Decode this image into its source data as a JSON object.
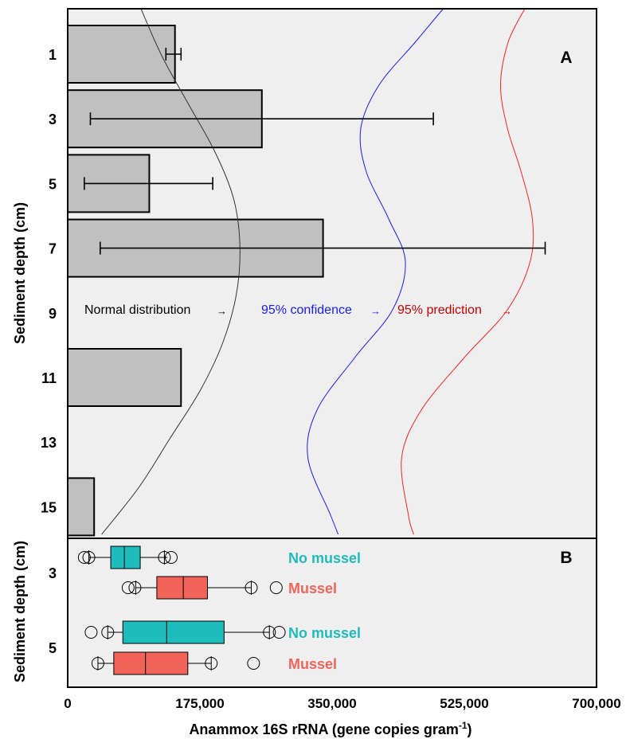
{
  "chart_data": [
    {
      "type": "bar",
      "orientation": "horizontal",
      "panel_label": "A",
      "ylabel": "Sediment depth (cm)",
      "categories": [
        "1",
        "3",
        "5",
        "7",
        "9",
        "11",
        "13",
        "15"
      ],
      "values": [
        142000,
        257000,
        108000,
        338000,
        0,
        150000,
        0,
        35000
      ],
      "error_low": [
        130000,
        30000,
        22000,
        43000,
        null,
        null,
        null,
        null
      ],
      "error_high": [
        150000,
        484000,
        192000,
        632000,
        null,
        null,
        null,
        null
      ],
      "bar_color": "#c0c0c0",
      "background_color": "#efefef",
      "curves": [
        {
          "label": "Normal distribution",
          "color": "#333333",
          "x": [
            97000,
            125000,
            160000,
            195000,
            220000,
            228000,
            223000,
            205000,
            175000,
            135000,
            95000,
            45000
          ],
          "depth": [
            0,
            1,
            2,
            3,
            4,
            5,
            6,
            7,
            8,
            9,
            10,
            11
          ]
        },
        {
          "label": "95% confidence",
          "color": "#1a1aff",
          "x": [
            497000,
            460000,
            412000,
            388000,
            395000,
            425000,
            447000,
            430000,
            380000,
            330000,
            318000,
            348000,
            358000
          ],
          "depth": [
            0,
            0.7,
            1.6,
            2.5,
            3.4,
            4.4,
            5.3,
            6.3,
            7.3,
            8.4,
            9.4,
            10.6,
            11.0
          ]
        },
        {
          "label": "95% prediction",
          "color": "#ff2020",
          "x": [
            605000,
            583000,
            573000,
            582000,
            600000,
            615000,
            612000,
            582000,
            525000,
            468000,
            442000,
            451000,
            458000
          ],
          "depth": [
            0,
            0.7,
            1.6,
            2.5,
            3.4,
            4.4,
            5.3,
            6.3,
            7.3,
            8.4,
            9.4,
            10.6,
            11.0
          ]
        }
      ],
      "annotations": {
        "normal": "Normal distribution",
        "confidence": "95% confidence",
        "prediction": "95% prediction",
        "arrow": "→"
      }
    },
    {
      "type": "box",
      "orientation": "horizontal",
      "panel_label": "B",
      "ylabel": "Sediment depth (cm)",
      "xlabel_main": "Anammox 16S rRNA (gene copies gram",
      "xlabel_sup": "-1",
      "xlabel_close": ")",
      "x_ticks": [
        "0",
        "175,000",
        "350,000",
        "525,000",
        "700,000"
      ],
      "x_tick_values": [
        0,
        175000,
        350000,
        525000,
        700000
      ],
      "xlim": [
        0,
        700000
      ],
      "categories": [
        "3",
        "5"
      ],
      "series": [
        {
          "name": "No mussel",
          "depth": "3",
          "color": "#1fbcbd",
          "label_color": "#1fbcbd",
          "whisker_low": 28000,
          "q1": 57000,
          "median": 75000,
          "q3": 96000,
          "whisker_high": 132000,
          "points": [
            22000,
            28000,
            128000,
            137000
          ],
          "tick_marks": [
            28000,
            128000
          ]
        },
        {
          "name": "Mussel",
          "depth": "3",
          "color": "#f2645a",
          "label_color": "#f2645a",
          "whisker_low": 90000,
          "q1": 118000,
          "median": 153000,
          "q3": 185000,
          "whisker_high": 243000,
          "points": [
            80000,
            89000,
            243000,
            276000
          ],
          "tick_marks": [
            90000,
            243000
          ]
        },
        {
          "name": "No mussel",
          "depth": "5",
          "color": "#1fbcbd",
          "label_color": "#1fbcbd",
          "whisker_low": 53000,
          "q1": 73000,
          "median": 131000,
          "q3": 207000,
          "whisker_high": 267000,
          "points": [
            31000,
            53000,
            267000,
            280000
          ],
          "tick_marks": [
            53000,
            267000
          ]
        },
        {
          "name": "Mussel",
          "depth": "5",
          "color": "#f2645a",
          "label_color": "#f2645a",
          "whisker_low": 40000,
          "q1": 61000,
          "median": 103000,
          "q3": 159000,
          "whisker_high": 190000,
          "points": [
            40000,
            190000,
            246000
          ],
          "tick_marks": [
            40000,
            190000
          ]
        }
      ]
    }
  ],
  "colors": {
    "panel_bg": "#efefef",
    "frame": "#000000"
  }
}
